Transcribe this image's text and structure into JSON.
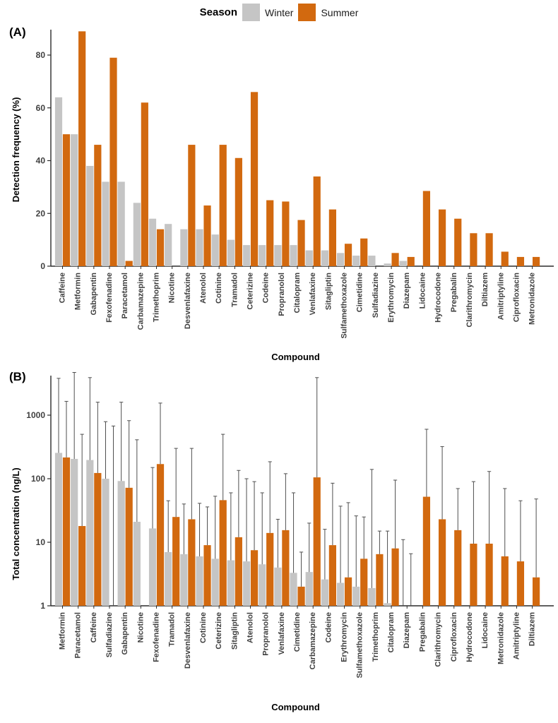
{
  "legend": {
    "title": "Season",
    "items": [
      {
        "label": "Winter",
        "color": "#C5C5C5"
      },
      {
        "label": "Summer",
        "color": "#D2690F"
      }
    ]
  },
  "panels": {
    "a": {
      "tag": "(A)"
    },
    "b": {
      "tag": "(B)"
    }
  },
  "colors": {
    "winter": "#C5C5C5",
    "summer": "#D2690F",
    "axis": "#2b2b2b",
    "error_bar": "#4f4f4f"
  },
  "chart_data": [
    {
      "id": "panel-a",
      "type": "bar",
      "title": "(A)",
      "ylabel": "Detection frequency (%)",
      "xlabel": "Compound",
      "yscale": "linear",
      "ylim": [
        0,
        90
      ],
      "yticks": [
        0,
        20,
        40,
        60,
        80
      ],
      "grid": false,
      "legend_position": "top",
      "categories": [
        "Caffeine",
        "Metformin",
        "Gabapentin",
        "Fexofenadine",
        "Paracetamol",
        "Carbamazepine",
        "Trimethoprim",
        "Nicotine",
        "Desvenlafaxine",
        "Atenolol",
        "Cotinine",
        "Tramadol",
        "Ceterizine",
        "Codeine",
        "Propranolol",
        "Citalopram",
        "Venlafaxine",
        "Sitagliptin",
        "Sulfamethoxazole",
        "Cimetidine",
        "Sulfadiazine",
        "Erythromycin",
        "Diazepam",
        "Lidocaine",
        "Hydrocodone",
        "Pregabalin",
        "Clarithromycin",
        "Diltiazem",
        "Amitriptyline",
        "Ciprofloxacin",
        "Metronidazole"
      ],
      "series": [
        {
          "name": "Winter",
          "color": "#C5C5C5",
          "values": [
            64,
            50,
            38,
            32,
            32,
            24,
            18,
            16,
            14,
            14,
            12,
            10,
            8,
            8,
            8,
            8,
            6,
            6,
            5,
            4,
            4,
            1,
            2,
            0,
            0,
            0,
            0,
            0,
            0,
            0,
            0
          ]
        },
        {
          "name": "Summer",
          "color": "#D2690F",
          "values": [
            50,
            89,
            46,
            79,
            2,
            62,
            14,
            0,
            46,
            23,
            46,
            41,
            66,
            25,
            24.5,
            17.5,
            34,
            21.5,
            8.5,
            10.5,
            0,
            5,
            3.5,
            28.5,
            21.5,
            18,
            12.5,
            12.5,
            5.5,
            3.5,
            3.5
          ]
        }
      ]
    },
    {
      "id": "panel-b",
      "type": "bar",
      "title": "(B)",
      "ylabel": "Total concentration (ng/L)",
      "xlabel": "Compound",
      "yscale": "log",
      "ylim": [
        1,
        5000
      ],
      "yticks": [
        1,
        10,
        100,
        1000
      ],
      "grid": false,
      "error_bars": "upper whiskers shown",
      "categories": [
        "Metformin",
        "Paracetamol",
        "Caffeine",
        "Sulfadiazine",
        "Gabapentin",
        "Nicotine",
        "Fexofenadine",
        "Tramadol",
        "Desvenlafaxine",
        "Cotinine",
        "Ceterizine",
        "Sitagliptin",
        "Atenolol",
        "Propranolol",
        "Venlafaxine",
        "Cimetidine",
        "Carbamazepine",
        "Codeine",
        "Erythromycin",
        "Sulfamethoxazole",
        "Trimethoprim",
        "Citalopram",
        "Diazepam",
        "Pregabalin",
        "Clarithromycin",
        "Ciprofloxacin",
        "Hydrocodone",
        "Lidocaine",
        "Metronidazole",
        "Amitriptyline",
        "Diltiazem"
      ],
      "series": [
        {
          "name": "Winter",
          "color": "#C5C5C5",
          "values": [
            255,
            205,
            197,
            100,
            92,
            21,
            16.5,
            7,
            6.5,
            6,
            5.5,
            5.2,
            5,
            4.5,
            4,
            3.3,
            3.4,
            2.6,
            2.3,
            2,
            1.9,
            1.1,
            null,
            null,
            null,
            null,
            null,
            null,
            null,
            null,
            null
          ],
          "error_upper": [
            3800,
            4700,
            3900,
            790,
            1600,
            410,
            150,
            45,
            40,
            41,
            53,
            60,
            100,
            60,
            23,
            60,
            20,
            16,
            37,
            26,
            140,
            15,
            11,
            null,
            null,
            null,
            null,
            null,
            null,
            null,
            null
          ]
        },
        {
          "name": "Summer",
          "color": "#D2690F",
          "values": [
            216,
            18,
            123,
            null,
            72,
            null,
            170,
            25,
            23,
            9,
            46,
            12,
            7.5,
            14,
            15.5,
            2,
            105,
            9,
            2.8,
            5.5,
            6.5,
            8,
            null,
            52,
            23,
            15.5,
            9.5,
            9.5,
            6,
            5,
            2.8
          ],
          "error_upper": [
            1650,
            500,
            1600,
            675,
            820,
            null,
            1550,
            300,
            300,
            36,
            500,
            135,
            90,
            185,
            120,
            7,
            3900,
            85,
            42,
            25,
            15,
            95,
            6.6,
            600,
            320,
            70,
            90,
            130,
            70,
            45,
            48
          ]
        }
      ]
    }
  ]
}
